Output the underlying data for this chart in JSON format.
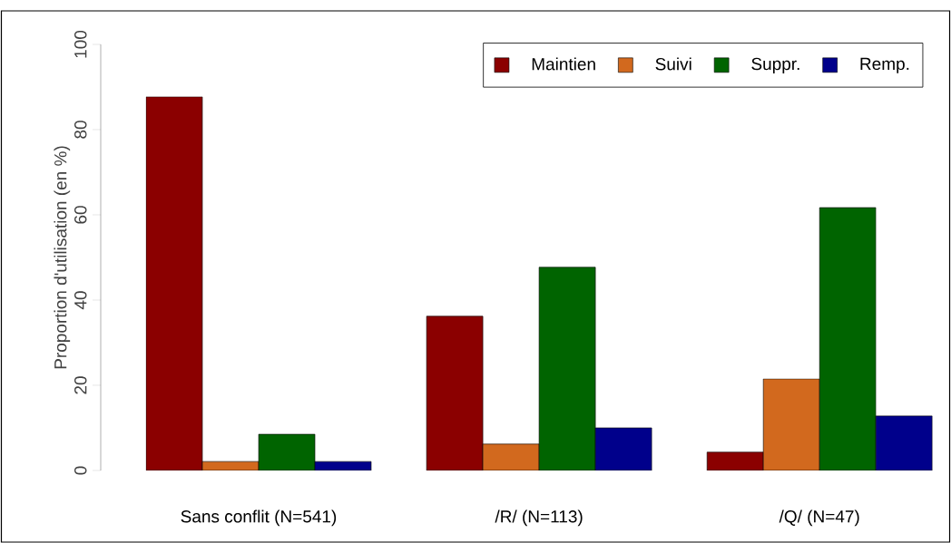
{
  "chart_data": {
    "type": "bar",
    "ylabel": "Proportion d'utilisation (en %)",
    "categories": [
      "Sans conflit (N=541)",
      "/R/ (N=113)",
      "/Q/ (N=47)"
    ],
    "series": [
      {
        "name": "Maintien",
        "color": "#8b0000",
        "values": [
          87.7,
          36.2,
          4.3
        ]
      },
      {
        "name": "Suivi",
        "color": "#d2691e",
        "values": [
          2.1,
          6.2,
          21.5
        ]
      },
      {
        "name": "Suppr.",
        "color": "#006400",
        "values": [
          8.5,
          47.7,
          61.7
        ]
      },
      {
        "name": "Remp.",
        "color": "#00008b",
        "values": [
          2.1,
          10.0,
          12.8
        ]
      }
    ],
    "ylim": [
      0,
      100
    ],
    "yticks": [
      0,
      20,
      40,
      60,
      80,
      100
    ],
    "grid": false,
    "legend": "top right"
  }
}
